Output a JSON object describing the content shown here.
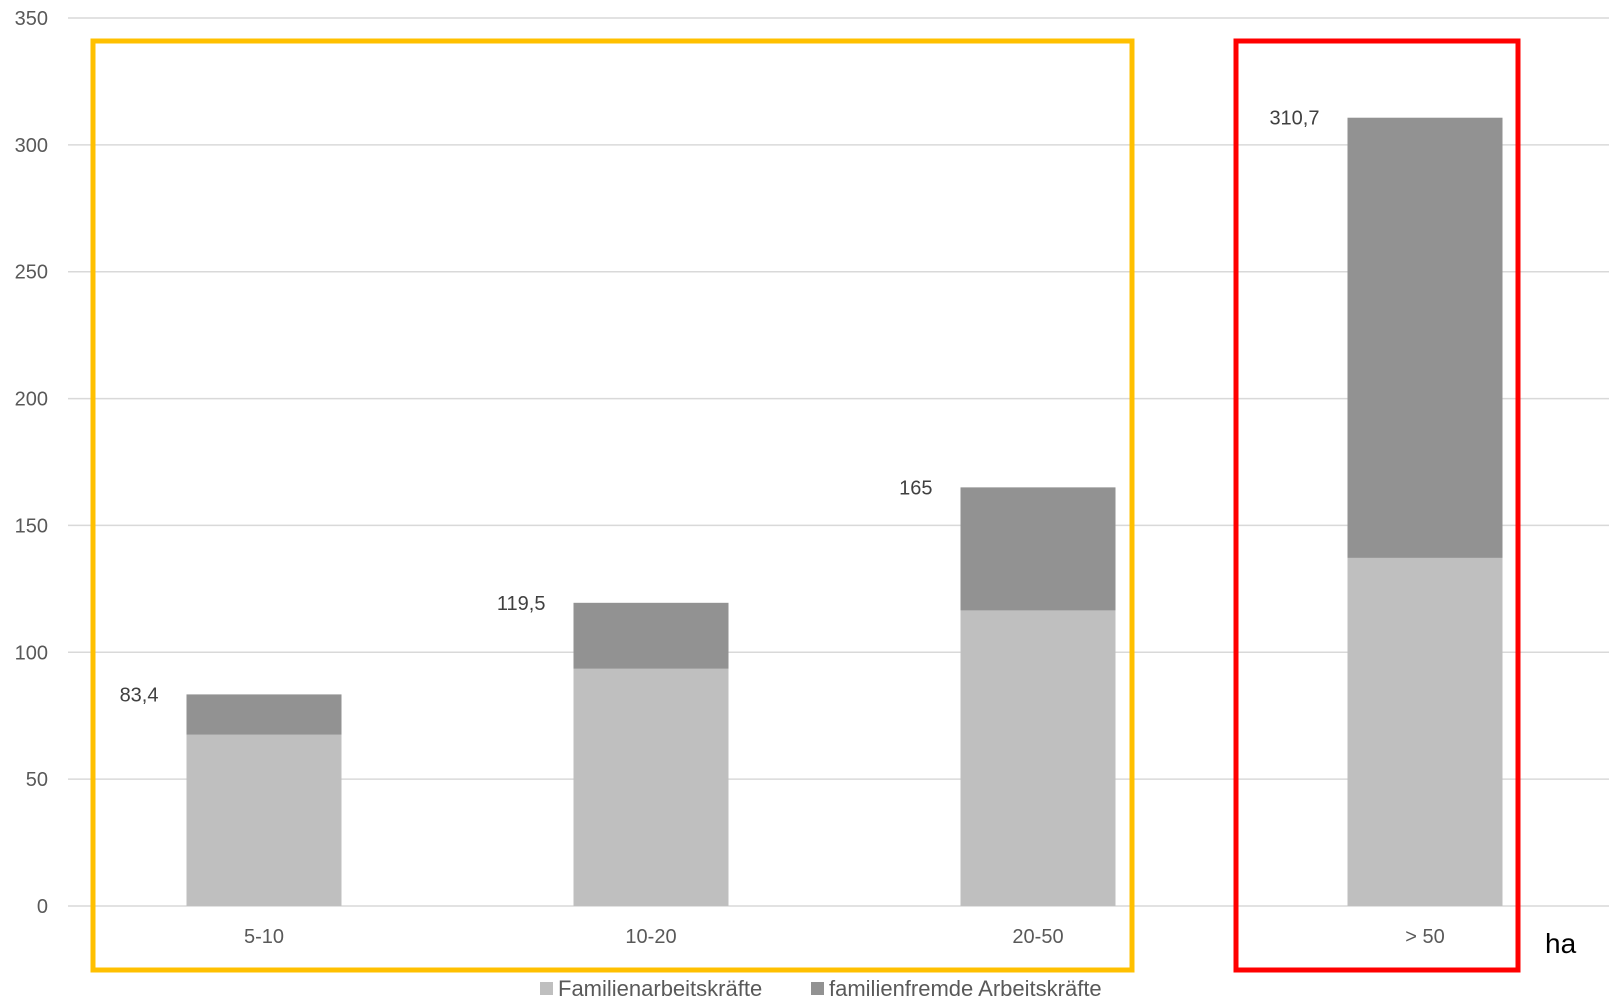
{
  "chart_data": {
    "type": "bar",
    "stacked": true,
    "categories": [
      "5-10",
      "10-20",
      "20-50",
      "> 50"
    ],
    "series": [
      {
        "name": "Familienarbeitskräfte",
        "values": [
          67.5,
          93.5,
          116.5,
          137.2
        ],
        "color": "#bfbfbf"
      },
      {
        "name": "familienfremde Arbeitskräfte",
        "values": [
          15.9,
          26.0,
          48.5,
          173.5
        ],
        "color": "#929292"
      }
    ],
    "totals": [
      83.4,
      119.5,
      165,
      310.7
    ],
    "total_labels": [
      "83,4",
      "119,5",
      "165",
      "310,7"
    ],
    "ylim": [
      0,
      350
    ],
    "yticks": [
      0,
      50,
      100,
      150,
      200,
      250,
      300,
      350
    ],
    "x_unit_label": "ha",
    "grid": true,
    "legend_position": "bottom",
    "highlight_groups": [
      {
        "categories": [
          "5-10",
          "10-20",
          "20-50"
        ],
        "color": "#ffc000"
      },
      {
        "categories": [
          "> 50"
        ],
        "color": "#ff0000"
      }
    ]
  }
}
